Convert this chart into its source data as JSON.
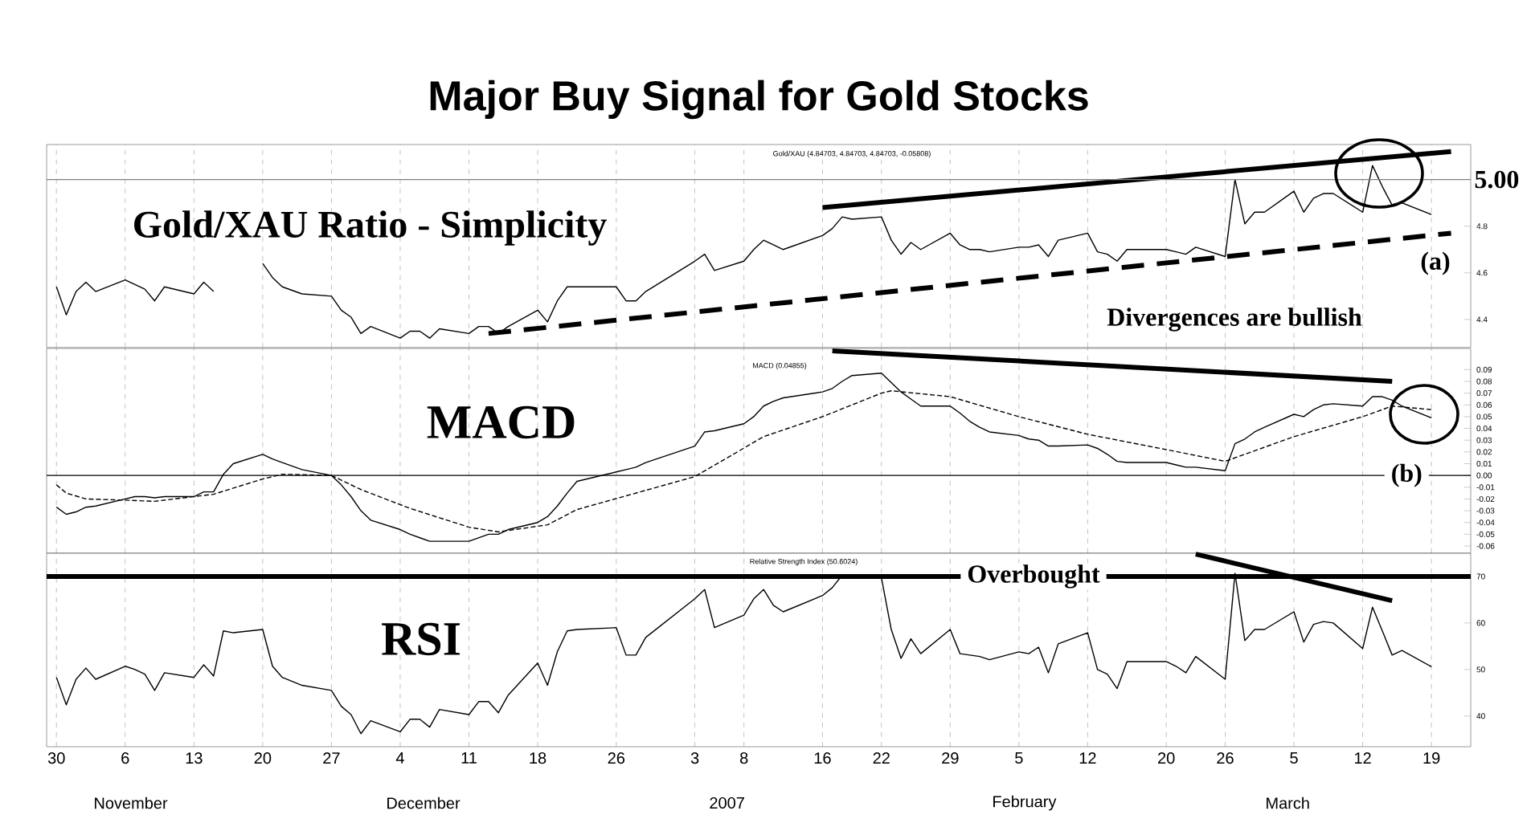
{
  "chart_data": [
    {
      "type": "line",
      "title": "Major Buy Signal for Gold Stocks",
      "x": [
        "2006-10-30",
        "2006-10-31",
        "2006-11-01",
        "2006-11-02",
        "2006-11-03",
        "2006-11-06",
        "2006-11-07",
        "2006-11-08",
        "2006-11-09",
        "2006-11-10",
        "2006-11-13",
        "2006-11-14",
        "2006-11-15",
        "2006-11-16",
        "2006-11-17",
        "2006-11-20",
        "2006-11-21",
        "2006-11-22",
        "2006-11-24",
        "2006-11-27",
        "2006-11-28",
        "2006-11-29",
        "2006-11-30",
        "2006-12-01",
        "2006-12-04",
        "2006-12-05",
        "2006-12-06",
        "2006-12-07",
        "2006-12-08",
        "2006-12-11",
        "2006-12-12",
        "2006-12-13",
        "2006-12-14",
        "2006-12-15",
        "2006-12-18",
        "2006-12-19",
        "2006-12-20",
        "2006-12-21",
        "2006-12-22",
        "2006-12-26",
        "2006-12-27",
        "2006-12-28",
        "2006-12-29",
        "2007-01-03",
        "2007-01-04",
        "2007-01-05",
        "2007-01-08",
        "2007-01-09",
        "2007-01-10",
        "2007-01-11",
        "2007-01-12",
        "2007-01-16",
        "2007-01-17",
        "2007-01-18",
        "2007-01-19",
        "2007-01-22",
        "2007-01-23",
        "2007-01-24",
        "2007-01-25",
        "2007-01-26",
        "2007-01-29",
        "2007-01-30",
        "2007-01-31",
        "2007-02-01",
        "2007-02-02",
        "2007-02-05",
        "2007-02-06",
        "2007-02-07",
        "2007-02-08",
        "2007-02-09",
        "2007-02-12",
        "2007-02-13",
        "2007-02-14",
        "2007-02-15",
        "2007-02-16",
        "2007-02-20",
        "2007-02-21",
        "2007-02-22",
        "2007-02-23",
        "2007-02-26",
        "2007-02-27",
        "2007-02-28",
        "2007-03-01",
        "2007-03-02",
        "2007-03-05",
        "2007-03-06",
        "2007-03-07",
        "2007-03-08",
        "2007-03-09",
        "2007-03-12",
        "2007-03-13",
        "2007-03-14",
        "2007-03-15",
        "2007-03-16",
        "2007-03-19"
      ],
      "series": [
        {
          "color": "#000000",
          "values": [
            4.54,
            4.42,
            4.52,
            4.56,
            4.52,
            4.57,
            4.55,
            4.53,
            4.48,
            4.54,
            4.51,
            4.56,
            4.52,
            null,
            null,
            4.64,
            4.58,
            4.54,
            4.51,
            4.5,
            4.44,
            4.41,
            4.34,
            4.37,
            4.32,
            4.35,
            4.35,
            4.32,
            4.36,
            4.34,
            4.37,
            4.37,
            4.34,
            4.37,
            4.44,
            4.39,
            4.48,
            4.54,
            4.54,
            4.54,
            4.48,
            4.48,
            4.52,
            4.65,
            4.68,
            4.61,
            4.65,
            4.7,
            4.74,
            4.72,
            4.7,
            4.76,
            4.79,
            4.84,
            4.83,
            4.84,
            4.74,
            4.68,
            4.73,
            4.7,
            4.77,
            4.72,
            4.7,
            4.7,
            4.69,
            4.71,
            4.71,
            4.72,
            4.67,
            4.74,
            4.77,
            4.69,
            4.68,
            4.65,
            4.7,
            4.7,
            4.69,
            4.68,
            4.71,
            4.67,
            5.0,
            4.81,
            4.86,
            4.86,
            4.95,
            4.86,
            4.92,
            4.94,
            4.94,
            4.86,
            5.06,
            4.97,
            4.89,
            4.9,
            4.85
          ]
        },
        {
          "type": "line",
          "color": "#000000",
          "line_style": "solid",
          "x": [
            "2007-01-16",
            "2007-03-21"
          ],
          "values": [
            4.88,
            5.12
          ]
        },
        {
          "type": "line",
          "color": "#000000",
          "line_style": "dashed",
          "x": [
            "2006-12-13",
            "2007-03-21"
          ],
          "values": [
            4.34,
            4.77
          ]
        }
      ],
      "xlim": [
        "2006-10-29",
        "2007-03-23"
      ],
      "xticks": [
        {
          "value": "2006-10-30",
          "label": null
        },
        {
          "value": "2006-11-06",
          "label": null
        },
        {
          "value": "2006-11-13",
          "label": null
        },
        {
          "value": "2006-11-20",
          "label": null
        },
        {
          "value": "2006-11-27",
          "label": null
        },
        {
          "value": "2006-12-04",
          "label": null
        },
        {
          "value": "2006-12-11",
          "label": null
        },
        {
          "value": "2006-12-18",
          "label": null
        },
        {
          "value": "2006-12-26",
          "label": null
        },
        {
          "value": "2007-01-03",
          "label": null
        },
        {
          "value": "2007-01-08",
          "label": null
        },
        {
          "value": "2007-01-16",
          "label": null
        },
        {
          "value": "2007-01-22",
          "label": null
        },
        {
          "value": "2007-01-29",
          "label": null
        },
        {
          "value": "2007-02-05",
          "label": null
        },
        {
          "value": "2007-02-12",
          "label": null
        },
        {
          "value": "2007-02-20",
          "label": null
        },
        {
          "value": "2007-02-26",
          "label": null
        },
        {
          "value": "2007-03-05",
          "label": null
        },
        {
          "value": "2007-03-12",
          "label": null
        },
        {
          "value": "2007-03-19",
          "label": null
        }
      ],
      "ylim": [
        4.28,
        5.15
      ],
      "yticks": [
        4.4,
        4.6,
        4.8
      ],
      "grid": "x",
      "tick_labels": "y",
      "ref_lines": [
        {
          "axis": "y",
          "value": 5,
          "label": "5.00",
          "color": "#7f7f7f"
        }
      ],
      "annotations": [
        "Gold/XAU (4.84703, 4.84703, 4.84703, -0.05808)",
        "Gold/XAU Ratio - Simplicity",
        "(a)",
        "Divergences are bullish"
      ]
    },
    {
      "type": "line",
      "x": [
        "2006-10-30",
        "2006-10-31",
        "2006-11-01",
        "2006-11-02",
        "2006-11-03",
        "2006-11-06",
        "2006-11-07",
        "2006-11-08",
        "2006-11-09",
        "2006-11-10",
        "2006-11-13",
        "2006-11-14",
        "2006-11-15",
        "2006-11-16",
        "2006-11-17",
        "2006-11-20",
        "2006-11-21",
        "2006-11-22",
        "2006-11-24",
        "2006-11-27",
        "2006-11-28",
        "2006-11-29",
        "2006-11-30",
        "2006-12-01",
        "2006-12-04",
        "2006-12-05",
        "2006-12-06",
        "2006-12-07",
        "2006-12-08",
        "2006-12-11",
        "2006-12-12",
        "2006-12-13",
        "2006-12-14",
        "2006-12-15",
        "2006-12-18",
        "2006-12-19",
        "2006-12-20",
        "2006-12-21",
        "2006-12-22",
        "2006-12-26",
        "2006-12-27",
        "2006-12-28",
        "2006-12-29",
        "2007-01-03",
        "2007-01-04",
        "2007-01-05",
        "2007-01-08",
        "2007-01-09",
        "2007-01-10",
        "2007-01-11",
        "2007-01-12",
        "2007-01-16",
        "2007-01-17",
        "2007-01-18",
        "2007-01-19",
        "2007-01-22",
        "2007-01-23",
        "2007-01-24",
        "2007-01-25",
        "2007-01-26",
        "2007-01-29",
        "2007-01-30",
        "2007-01-31",
        "2007-02-01",
        "2007-02-02",
        "2007-02-05",
        "2007-02-06",
        "2007-02-07",
        "2007-02-08",
        "2007-02-09",
        "2007-02-12",
        "2007-02-13",
        "2007-02-14",
        "2007-02-15",
        "2007-02-16",
        "2007-02-20",
        "2007-02-21",
        "2007-02-22",
        "2007-02-23",
        "2007-02-26",
        "2007-02-27",
        "2007-02-28",
        "2007-03-01",
        "2007-03-02",
        "2007-03-05",
        "2007-03-06",
        "2007-03-07",
        "2007-03-08",
        "2007-03-09",
        "2007-03-12",
        "2007-03-13",
        "2007-03-14",
        "2007-03-15",
        "2007-03-16",
        "2007-03-19"
      ],
      "series": [
        {
          "color": "#000000",
          "values": [
            -0.027,
            -0.033,
            -0.031,
            -0.027,
            -0.026,
            -0.02,
            -0.018,
            -0.018,
            -0.019,
            -0.018,
            -0.018,
            -0.014,
            -0.014,
            0.001,
            0.01,
            0.018,
            0.014,
            0.011,
            0.005,
            0.0,
            -0.008,
            -0.018,
            -0.03,
            -0.038,
            -0.046,
            -0.05,
            -0.053,
            -0.056,
            -0.056,
            -0.056,
            -0.053,
            -0.05,
            -0.05,
            -0.046,
            -0.04,
            -0.035,
            -0.026,
            -0.015,
            -0.005,
            0.003,
            0.005,
            0.007,
            0.011,
            0.025,
            0.037,
            0.038,
            0.044,
            0.05,
            0.059,
            0.063,
            0.066,
            0.071,
            0.074,
            0.08,
            0.085,
            0.087,
            0.079,
            0.071,
            0.065,
            0.059,
            0.059,
            0.053,
            0.046,
            0.041,
            0.037,
            0.034,
            0.031,
            0.03,
            0.025,
            0.025,
            0.026,
            0.023,
            0.018,
            0.012,
            0.011,
            0.011,
            0.009,
            0.007,
            0.007,
            0.004,
            0.027,
            0.031,
            0.037,
            0.041,
            0.052,
            0.05,
            0.056,
            0.06,
            0.061,
            0.059,
            0.067,
            0.067,
            0.064,
            0.059,
            0.049
          ]
        },
        {
          "color": "#000000",
          "line_style": "dashed",
          "x": [
            "2006-10-30",
            "2006-10-31",
            "2006-11-02",
            "2006-11-06",
            "2006-11-09",
            "2006-11-15",
            "2006-11-20",
            "2006-11-22",
            "2006-11-27",
            "2006-11-30",
            "2006-12-05",
            "2006-12-11",
            "2006-12-14",
            "2006-12-19",
            "2006-12-22",
            "2007-01-03",
            "2007-01-10",
            "2007-01-16",
            "2007-01-22",
            "2007-01-23",
            "2007-01-29",
            "2007-02-05",
            "2007-02-12",
            "2007-02-20",
            "2007-02-26",
            "2007-03-05",
            "2007-03-12",
            "2007-03-15",
            "2007-03-19"
          ],
          "values": [
            -0.008,
            -0.015,
            -0.02,
            -0.021,
            -0.022,
            -0.016,
            -0.003,
            0.001,
            0.0,
            -0.012,
            -0.028,
            -0.044,
            -0.048,
            -0.042,
            -0.029,
            -0.001,
            0.033,
            0.05,
            0.07,
            0.072,
            0.067,
            0.05,
            0.035,
            0.022,
            0.012,
            0.033,
            0.05,
            0.059,
            0.056
          ]
        },
        {
          "type": "line",
          "color": "#000000",
          "line_style": "solid",
          "x": [
            "2007-01-17",
            "2007-03-15"
          ],
          "values": [
            0.106,
            0.08
          ]
        }
      ],
      "xlim": [
        "2006-10-29",
        "2007-03-23"
      ],
      "xticks": [
        {
          "value": "2006-10-30",
          "label": null
        },
        {
          "value": "2006-11-06",
          "label": null
        },
        {
          "value": "2006-11-13",
          "label": null
        },
        {
          "value": "2006-11-20",
          "label": null
        },
        {
          "value": "2006-11-27",
          "label": null
        },
        {
          "value": "2006-12-04",
          "label": null
        },
        {
          "value": "2006-12-11",
          "label": null
        },
        {
          "value": "2006-12-18",
          "label": null
        },
        {
          "value": "2006-12-26",
          "label": null
        },
        {
          "value": "2007-01-03",
          "label": null
        },
        {
          "value": "2007-01-08",
          "label": null
        },
        {
          "value": "2007-01-16",
          "label": null
        },
        {
          "value": "2007-01-22",
          "label": null
        },
        {
          "value": "2007-01-29",
          "label": null
        },
        {
          "value": "2007-02-05",
          "label": null
        },
        {
          "value": "2007-02-12",
          "label": null
        },
        {
          "value": "2007-02-20",
          "label": null
        },
        {
          "value": "2007-02-26",
          "label": null
        },
        {
          "value": "2007-03-05",
          "label": null
        },
        {
          "value": "2007-03-12",
          "label": null
        },
        {
          "value": "2007-03-19",
          "label": null
        }
      ],
      "ylim": [
        -0.066,
        0.108
      ],
      "yticks": [
        {
          "value": -0.06,
          "label": "-0.06"
        },
        {
          "value": -0.05,
          "label": "-0.05"
        },
        {
          "value": -0.04,
          "label": "-0.04"
        },
        {
          "value": -0.03,
          "label": "-0.03"
        },
        {
          "value": -0.02,
          "label": "-0.02"
        },
        {
          "value": -0.01,
          "label": "-0.01"
        },
        {
          "value": 0,
          "label": "0.00"
        },
        {
          "value": 0.01,
          "label": "0.01"
        },
        {
          "value": 0.02,
          "label": "0.02"
        },
        {
          "value": 0.03,
          "label": "0.03"
        },
        {
          "value": 0.04,
          "label": "0.04"
        },
        {
          "value": 0.05,
          "label": "0.05"
        },
        {
          "value": 0.06,
          "label": "0.06"
        },
        {
          "value": 0.07,
          "label": "0.07"
        },
        {
          "value": 0.08,
          "label": "0.08"
        },
        {
          "value": 0.09,
          "label": "0.09"
        }
      ],
      "grid": "x",
      "tick_labels": "y",
      "ref_lines": [
        {
          "axis": "y",
          "value": 0,
          "label": "(b)",
          "color": "#000000"
        }
      ],
      "annotations": [
        "MACD (0.04855)",
        "MACD"
      ]
    },
    {
      "type": "line",
      "x": [
        "2006-10-30",
        "2006-10-31",
        "2006-11-01",
        "2006-11-02",
        "2006-11-03",
        "2006-11-06",
        "2006-11-07",
        "2006-11-08",
        "2006-11-09",
        "2006-11-10",
        "2006-11-13",
        "2006-11-14",
        "2006-11-15",
        "2006-11-16",
        "2006-11-17",
        "2006-11-20",
        "2006-11-21",
        "2006-11-22",
        "2006-11-24",
        "2006-11-27",
        "2006-11-28",
        "2006-11-29",
        "2006-11-30",
        "2006-12-01",
        "2006-12-04",
        "2006-12-05",
        "2006-12-06",
        "2006-12-07",
        "2006-12-08",
        "2006-12-11",
        "2006-12-12",
        "2006-12-13",
        "2006-12-14",
        "2006-12-15",
        "2006-12-18",
        "2006-12-19",
        "2006-12-20",
        "2006-12-21",
        "2006-12-22",
        "2006-12-26",
        "2006-12-27",
        "2006-12-28",
        "2006-12-29",
        "2007-01-03",
        "2007-01-04",
        "2007-01-05",
        "2007-01-08",
        "2007-01-09",
        "2007-01-10",
        "2007-01-11",
        "2007-01-12",
        "2007-01-16",
        "2007-01-17",
        "2007-01-18",
        "2007-01-19",
        "2007-01-22",
        "2007-01-23",
        "2007-01-24",
        "2007-01-25",
        "2007-01-26",
        "2007-01-29",
        "2007-01-30",
        "2007-01-31",
        "2007-02-01",
        "2007-02-02",
        "2007-02-05",
        "2007-02-06",
        "2007-02-07",
        "2007-02-08",
        "2007-02-09",
        "2007-02-12",
        "2007-02-13",
        "2007-02-14",
        "2007-02-15",
        "2007-02-16",
        "2007-02-20",
        "2007-02-21",
        "2007-02-22",
        "2007-02-23",
        "2007-02-26",
        "2007-02-27",
        "2007-02-28",
        "2007-03-01",
        "2007-03-02",
        "2007-03-05",
        "2007-03-06",
        "2007-03-07",
        "2007-03-08",
        "2007-03-09",
        "2007-03-12",
        "2007-03-13",
        "2007-03-14",
        "2007-03-15",
        "2007-03-16",
        "2007-03-19"
      ],
      "series": [
        {
          "color": "#000000",
          "values": [
            48.3,
            42.4,
            47.9,
            50.3,
            47.9,
            50.7,
            50.0,
            49.0,
            45.5,
            49.3,
            48.3,
            51.0,
            48.6,
            58.3,
            57.9,
            58.6,
            50.7,
            48.3,
            46.6,
            45.5,
            42.1,
            40.3,
            36.2,
            39.0,
            36.6,
            39.3,
            39.3,
            37.6,
            41.4,
            40.3,
            43.1,
            43.1,
            40.7,
            44.5,
            51.4,
            46.6,
            53.8,
            58.3,
            58.6,
            59.0,
            53.1,
            53.1,
            56.9,
            65.2,
            67.2,
            59.0,
            61.7,
            65.2,
            67.2,
            63.8,
            62.4,
            65.9,
            67.6,
            70.3,
            69.7,
            69.7,
            58.6,
            52.4,
            56.6,
            53.4,
            58.6,
            53.4,
            53.1,
            52.8,
            52.1,
            53.8,
            53.4,
            54.8,
            49.3,
            55.5,
            57.9,
            50.0,
            49.0,
            45.9,
            51.7,
            51.7,
            50.7,
            49.3,
            52.8,
            47.9,
            70.7,
            56.2,
            58.6,
            58.6,
            62.4,
            55.9,
            59.7,
            60.3,
            60.0,
            54.5,
            63.4,
            58.3,
            53.1,
            54.1,
            50.6
          ]
        },
        {
          "type": "line",
          "color": "#000000",
          "line_style": "solid",
          "x": [
            "2007-02-23",
            "2007-03-15"
          ],
          "values": [
            74.8,
            64.8
          ]
        }
      ],
      "xlim": [
        "2006-10-29",
        "2007-03-23"
      ],
      "xticks": [
        {
          "value": "2006-10-30",
          "label": "30"
        },
        {
          "value": "2006-11-06",
          "label": "6"
        },
        {
          "value": "2006-11-13",
          "label": "13"
        },
        {
          "value": "2006-11-20",
          "label": "20"
        },
        {
          "value": "2006-11-27",
          "label": "27"
        },
        {
          "value": "2006-12-04",
          "label": "4"
        },
        {
          "value": "2006-12-11",
          "label": "11"
        },
        {
          "value": "2006-12-18",
          "label": "18"
        },
        {
          "value": "2006-12-26",
          "label": "26"
        },
        {
          "value": "2007-01-03",
          "label": "3"
        },
        {
          "value": "2007-01-08",
          "label": "8"
        },
        {
          "value": "2007-01-16",
          "label": "16"
        },
        {
          "value": "2007-01-22",
          "label": "22"
        },
        {
          "value": "2007-01-29",
          "label": "29"
        },
        {
          "value": "2007-02-05",
          "label": "5"
        },
        {
          "value": "2007-02-12",
          "label": "12"
        },
        {
          "value": "2007-02-20",
          "label": "20"
        },
        {
          "value": "2007-02-26",
          "label": "26"
        },
        {
          "value": "2007-03-05",
          "label": "5"
        },
        {
          "value": "2007-03-12",
          "label": "12"
        },
        {
          "value": "2007-03-19",
          "label": "19"
        }
      ],
      "ylim": [
        33.4,
        75
      ],
      "yticks": [
        40,
        50,
        60,
        70
      ],
      "grid": "x",
      "ref_lines": [
        {
          "axis": "y",
          "value": 70,
          "label": "Overbought",
          "color": "#000000"
        }
      ],
      "annotations": [
        "Relative Strength Index (50.6024)",
        "RSI",
        "November",
        "December",
        "2007",
        "February",
        "March"
      ]
    }
  ]
}
